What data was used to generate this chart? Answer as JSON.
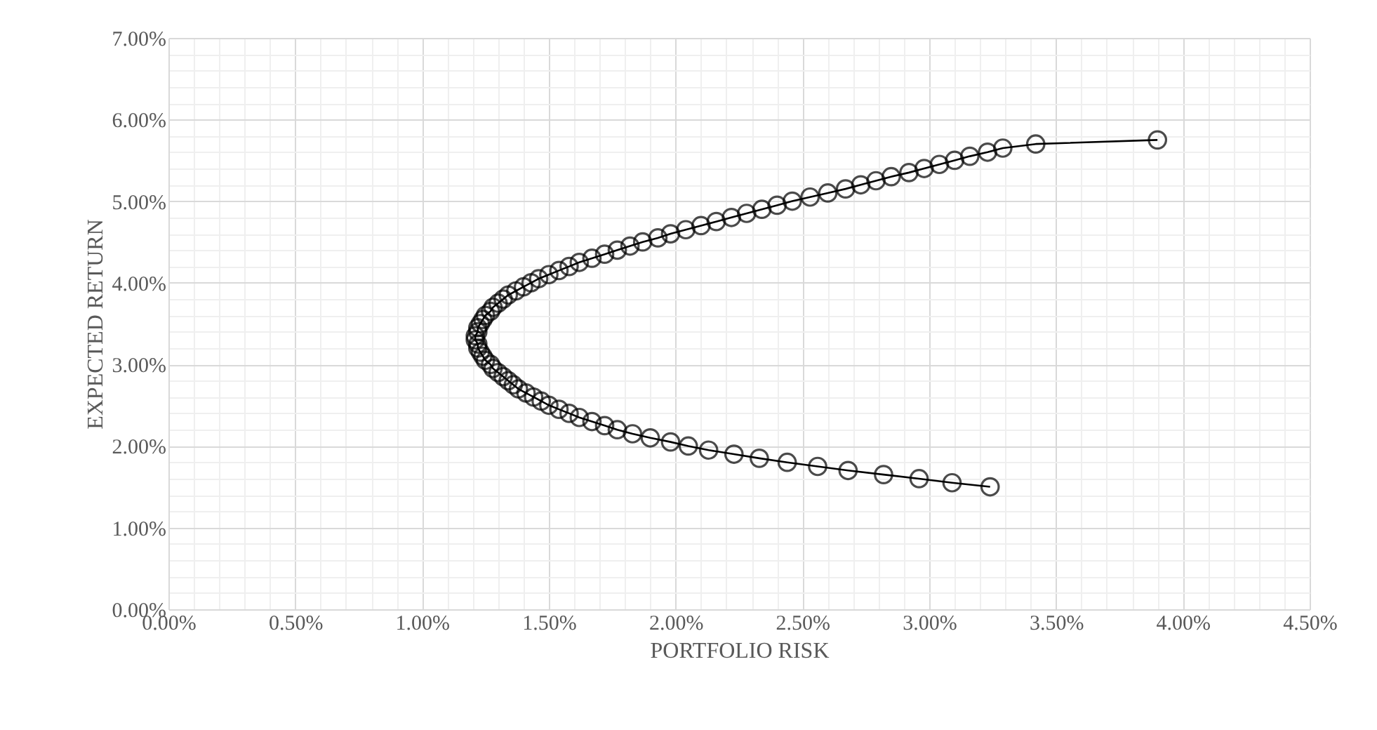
{
  "chart_data": {
    "type": "line",
    "xlabel": "PORTFOLIO RISK",
    "ylabel": "EXPECTED RETURN",
    "xlim": [
      0,
      4.5
    ],
    "ylim": [
      0,
      7
    ],
    "xticks": [
      {
        "value": 0,
        "label": "0.00%"
      },
      {
        "value": 0.1,
        "label": null
      },
      {
        "value": 0.2,
        "label": null
      },
      {
        "value": 0.3,
        "label": null
      },
      {
        "value": 0.4,
        "label": null
      },
      {
        "value": 0.5,
        "label": "0.50%"
      },
      {
        "value": 0.6,
        "label": null
      },
      {
        "value": 0.7,
        "label": null
      },
      {
        "value": 0.8,
        "label": null
      },
      {
        "value": 0.9,
        "label": null
      },
      {
        "value": 1,
        "label": "1.00%"
      },
      {
        "value": 1.1,
        "label": null
      },
      {
        "value": 1.2,
        "label": null
      },
      {
        "value": 1.3,
        "label": null
      },
      {
        "value": 1.4,
        "label": null
      },
      {
        "value": 1.5,
        "label": "1.50%"
      },
      {
        "value": 1.6,
        "label": null
      },
      {
        "value": 1.7,
        "label": null
      },
      {
        "value": 1.8,
        "label": null
      },
      {
        "value": 1.9,
        "label": null
      },
      {
        "value": 2,
        "label": "2.00%"
      },
      {
        "value": 2.1,
        "label": null
      },
      {
        "value": 2.2,
        "label": null
      },
      {
        "value": 2.3,
        "label": null
      },
      {
        "value": 2.4,
        "label": null
      },
      {
        "value": 2.5,
        "label": "2.50%"
      },
      {
        "value": 2.6,
        "label": null
      },
      {
        "value": 2.7,
        "label": null
      },
      {
        "value": 2.8,
        "label": null
      },
      {
        "value": 2.9,
        "label": null
      },
      {
        "value": 3,
        "label": "3.00%"
      },
      {
        "value": 3.1,
        "label": null
      },
      {
        "value": 3.2,
        "label": null
      },
      {
        "value": 3.3,
        "label": null
      },
      {
        "value": 3.4,
        "label": null
      },
      {
        "value": 3.5,
        "label": "3.50%"
      },
      {
        "value": 3.6,
        "label": null
      },
      {
        "value": 3.7,
        "label": null
      },
      {
        "value": 3.8,
        "label": null
      },
      {
        "value": 3.9,
        "label": null
      },
      {
        "value": 4,
        "label": "4.00%"
      },
      {
        "value": 4.1,
        "label": null
      },
      {
        "value": 4.2,
        "label": null
      },
      {
        "value": 4.3,
        "label": null
      },
      {
        "value": 4.4,
        "label": null
      },
      {
        "value": 4.5,
        "label": "4.50%"
      }
    ],
    "yticks": [
      {
        "value": 0,
        "label": "0.00%"
      },
      {
        "value": 0.2,
        "label": null
      },
      {
        "value": 0.4,
        "label": null
      },
      {
        "value": 0.6,
        "label": null
      },
      {
        "value": 0.8,
        "label": null
      },
      {
        "value": 1,
        "label": "1.00%"
      },
      {
        "value": 1.2,
        "label": null
      },
      {
        "value": 1.4,
        "label": null
      },
      {
        "value": 1.6,
        "label": null
      },
      {
        "value": 1.8,
        "label": null
      },
      {
        "value": 2,
        "label": "2.00%"
      },
      {
        "value": 2.2,
        "label": null
      },
      {
        "value": 2.4,
        "label": null
      },
      {
        "value": 2.6,
        "label": null
      },
      {
        "value": 2.8,
        "label": null
      },
      {
        "value": 3,
        "label": "3.00%"
      },
      {
        "value": 3.2,
        "label": null
      },
      {
        "value": 3.4,
        "label": null
      },
      {
        "value": 3.6,
        "label": null
      },
      {
        "value": 3.8,
        "label": null
      },
      {
        "value": 4,
        "label": "4.00%"
      },
      {
        "value": 4.2,
        "label": null
      },
      {
        "value": 4.4,
        "label": null
      },
      {
        "value": 4.6,
        "label": null
      },
      {
        "value": 4.8,
        "label": null
      },
      {
        "value": 5,
        "label": "5.00%"
      },
      {
        "value": 5.2,
        "label": null
      },
      {
        "value": 5.4,
        "label": null
      },
      {
        "value": 5.6,
        "label": null
      },
      {
        "value": 5.8,
        "label": null
      },
      {
        "value": 6,
        "label": "6.00%"
      },
      {
        "value": 6.2,
        "label": null
      },
      {
        "value": 6.4,
        "label": null
      },
      {
        "value": 6.6,
        "label": null
      },
      {
        "value": 6.8,
        "label": null
      },
      {
        "value": 7,
        "label": "7.00%"
      }
    ],
    "grid": true,
    "marker": "circle",
    "line_style": "solid",
    "series": [
      {
        "color": "#000000",
        "x": [
          3.24,
          3.09,
          2.96,
          2.82,
          2.68,
          2.56,
          2.44,
          2.33,
          2.23,
          2.13,
          2.05,
          1.98,
          1.9,
          1.83,
          1.77,
          1.72,
          1.67,
          1.62,
          1.58,
          1.54,
          1.5,
          1.47,
          1.44,
          1.41,
          1.38,
          1.36,
          1.34,
          1.32,
          1.3,
          1.28,
          1.27,
          1.25,
          1.24,
          1.23,
          1.22,
          1.22,
          1.21,
          1.21,
          1.22,
          1.22,
          1.23,
          1.24,
          1.25,
          1.27,
          1.28,
          1.3,
          1.32,
          1.34,
          1.37,
          1.4,
          1.43,
          1.46,
          1.5,
          1.54,
          1.58,
          1.62,
          1.67,
          1.72,
          1.77,
          1.82,
          1.87,
          1.93,
          1.98,
          2.04,
          2.1,
          2.16,
          2.22,
          2.28,
          2.34,
          2.4,
          2.46,
          2.53,
          2.6,
          2.67,
          2.73,
          2.79,
          2.85,
          2.92,
          2.98,
          3.04,
          3.1,
          3.16,
          3.23,
          3.29,
          3.42,
          3.9
        ],
        "values": [
          1.5,
          1.55,
          1.6,
          1.65,
          1.7,
          1.75,
          1.8,
          1.85,
          1.9,
          1.95,
          2.0,
          2.05,
          2.1,
          2.15,
          2.2,
          2.25,
          2.3,
          2.35,
          2.4,
          2.45,
          2.5,
          2.55,
          2.6,
          2.65,
          2.7,
          2.75,
          2.8,
          2.85,
          2.9,
          2.95,
          3.0,
          3.05,
          3.1,
          3.15,
          3.2,
          3.25,
          3.3,
          3.35,
          3.4,
          3.45,
          3.5,
          3.55,
          3.6,
          3.65,
          3.7,
          3.75,
          3.8,
          3.85,
          3.9,
          3.95,
          4.0,
          4.05,
          4.1,
          4.15,
          4.2,
          4.25,
          4.3,
          4.35,
          4.4,
          4.45,
          4.5,
          4.55,
          4.6,
          4.65,
          4.7,
          4.75,
          4.8,
          4.85,
          4.9,
          4.95,
          5.0,
          5.05,
          5.1,
          5.15,
          5.2,
          5.25,
          5.3,
          5.35,
          5.4,
          5.45,
          5.5,
          5.55,
          5.6,
          5.65,
          5.7,
          5.75
        ]
      }
    ]
  }
}
